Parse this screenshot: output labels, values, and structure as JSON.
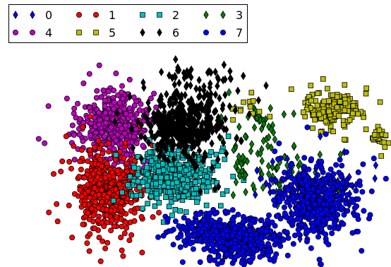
{
  "chart_data": {
    "type": "scatter",
    "title": "",
    "xlabel": "",
    "ylabel": "",
    "grid": false,
    "axes_visible": false,
    "xlim": [
      0,
      100
    ],
    "ylim": [
      0,
      70
    ],
    "legend": {
      "placement": "top-left",
      "columns": 4
    },
    "series": [
      {
        "name": "0",
        "marker": "diamond",
        "color": "#0000ff",
        "clusters": [
          {
            "cx": 76,
            "cy": 23,
            "sx": 4,
            "sy": 5,
            "n": 70
          },
          {
            "cx": 86,
            "cy": 24,
            "sx": 4,
            "sy": 3,
            "n": 35
          }
        ]
      },
      {
        "name": "1",
        "marker": "circle",
        "color": "#ff0000",
        "clusters": [
          {
            "cx": 22,
            "cy": 23,
            "sx": 4.5,
            "sy": 5.5,
            "n": 520
          }
        ]
      },
      {
        "name": "2",
        "marker": "square",
        "color": "#00bfbf",
        "clusters": [
          {
            "cx": 41,
            "cy": 27,
            "sx": 5,
            "sy": 4,
            "n": 440
          }
        ]
      },
      {
        "name": "3",
        "marker": "diamond",
        "color": "#008000",
        "clusters": [
          {
            "cx": 64,
            "cy": 38,
            "sx": 4,
            "sy": 7,
            "n": 60
          },
          {
            "cx": 74,
            "cy": 27,
            "sx": 5,
            "sy": 4,
            "n": 40
          },
          {
            "cx": 60,
            "cy": 28,
            "sx": 3,
            "sy": 4,
            "n": 20
          }
        ]
      },
      {
        "name": "4",
        "marker": "circle",
        "color": "#bf00bf",
        "clusters": [
          {
            "cx": 23,
            "cy": 43,
            "sx": 5,
            "sy": 5,
            "n": 440
          }
        ]
      },
      {
        "name": "5",
        "marker": "square",
        "color": "#bfbf00",
        "clusters": [
          {
            "cx": 84,
            "cy": 48,
            "sx": 3.5,
            "sy": 2.5,
            "n": 170
          },
          {
            "cx": 97,
            "cy": 39,
            "sx": 1.5,
            "sy": 2,
            "n": 30
          },
          {
            "cx": 62,
            "cy": 48,
            "sx": 3,
            "sy": 2,
            "n": 12
          }
        ]
      },
      {
        "name": "6",
        "marker": "diamond",
        "color": "#000000",
        "clusters": [
          {
            "cx": 43,
            "cy": 43,
            "sx": 5,
            "sy": 5,
            "n": 420
          },
          {
            "cx": 47,
            "cy": 57,
            "sx": 5,
            "sy": 2,
            "n": 40
          }
        ]
      },
      {
        "name": "7",
        "marker": "circle",
        "color": "#0000ff",
        "clusters": [
          {
            "cx": 59,
            "cy": 8,
            "sx": 5,
            "sy": 3.5,
            "n": 400
          },
          {
            "cx": 80,
            "cy": 19,
            "sx": 5,
            "sy": 5,
            "n": 420
          },
          {
            "cx": 47,
            "cy": 11,
            "sx": 4,
            "sy": 2.5,
            "n": 120
          }
        ]
      }
    ]
  }
}
